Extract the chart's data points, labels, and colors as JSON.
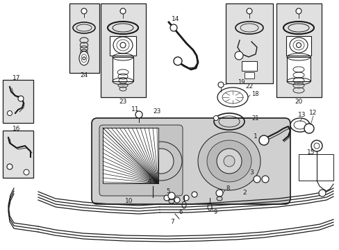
{
  "bg_color": "#ffffff",
  "line_color": "#1a1a1a",
  "box_fill": "#e0e0e0",
  "fig_width": 4.89,
  "fig_height": 3.6,
  "dpi": 100
}
